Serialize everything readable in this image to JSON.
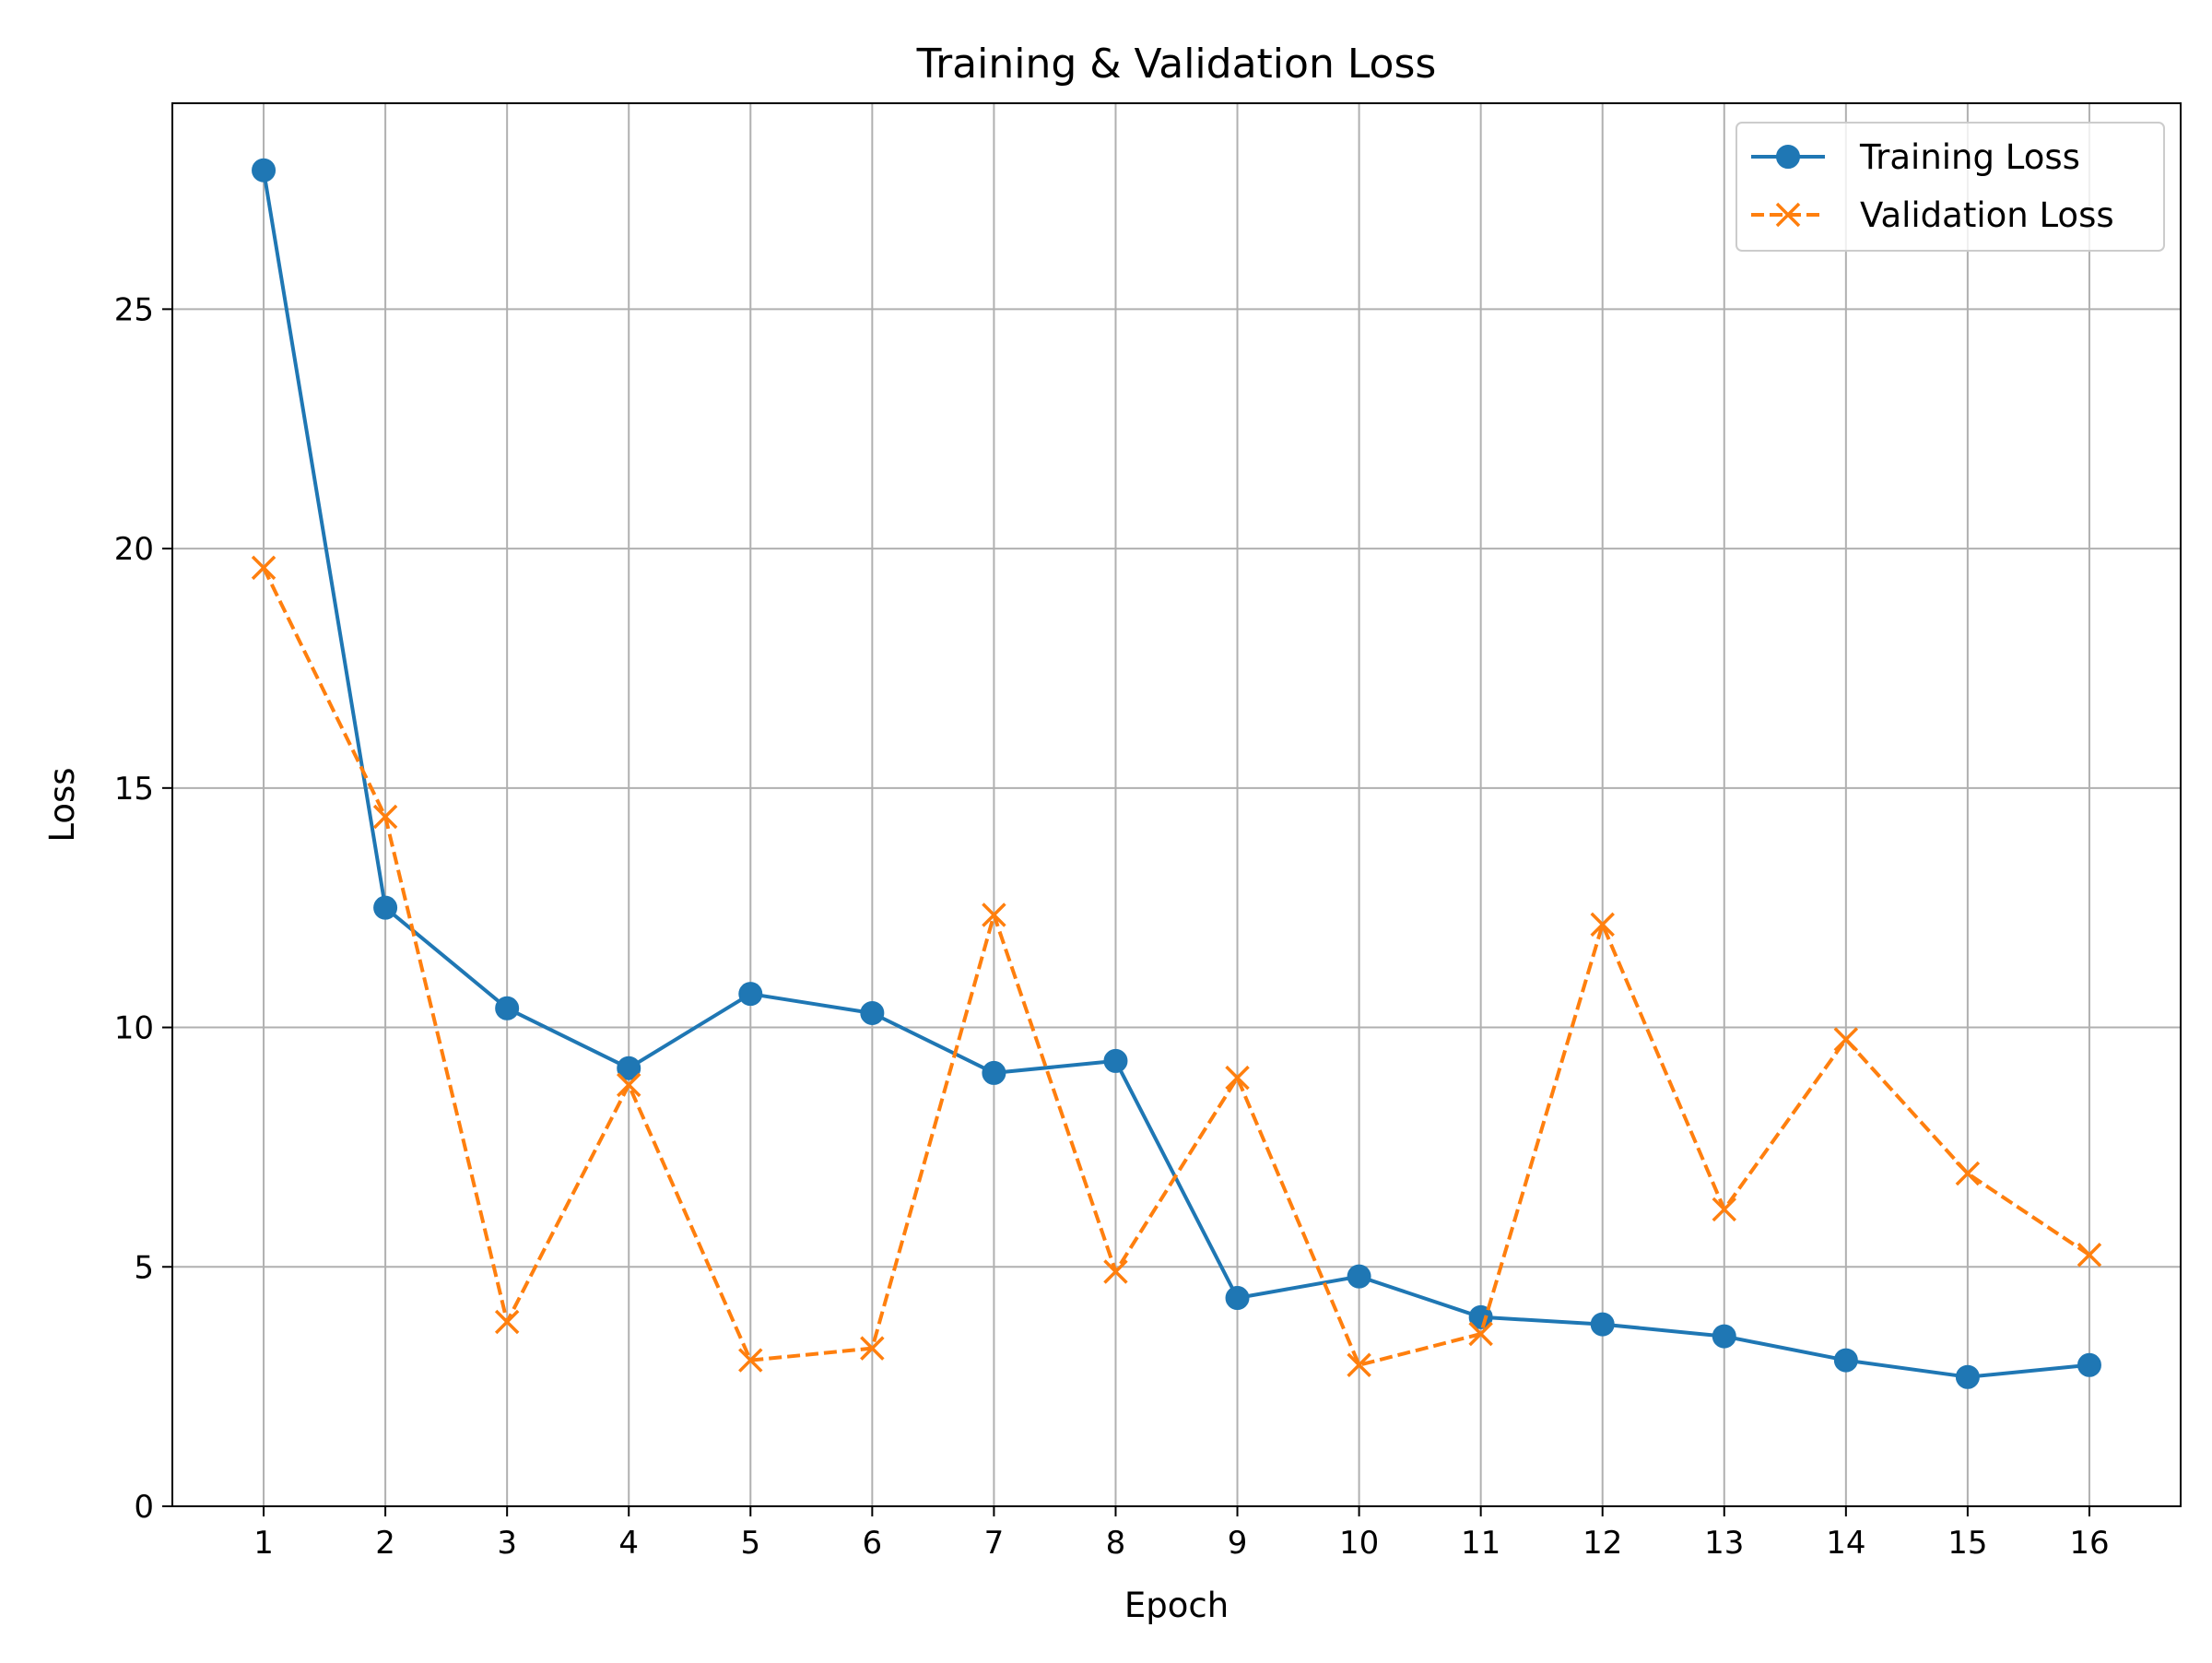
{
  "chart_data": {
    "type": "line",
    "title": "Training & Validation Loss",
    "xlabel": "Epoch",
    "ylabel": "Loss",
    "x": [
      1,
      2,
      3,
      4,
      5,
      6,
      7,
      8,
      9,
      10,
      11,
      12,
      13,
      14,
      15,
      16
    ],
    "xlim": [
      0.25,
      16.75
    ],
    "ylim": [
      0,
      29.3
    ],
    "yticks": [
      0,
      5,
      10,
      15,
      20,
      25
    ],
    "grid": true,
    "legend_position": "top-right",
    "series": [
      {
        "name": "Training Loss",
        "color": "#1f77b4",
        "line_style": "solid",
        "marker": "circle",
        "values": [
          27.9,
          12.5,
          10.4,
          9.15,
          10.7,
          10.3,
          9.05,
          9.3,
          4.35,
          4.8,
          3.95,
          3.8,
          3.55,
          3.05,
          2.7,
          2.95
        ]
      },
      {
        "name": "Validation Loss",
        "color": "#ff7f0e",
        "line_style": "dashed",
        "marker": "x",
        "values": [
          19.6,
          14.4,
          3.85,
          8.8,
          3.05,
          3.3,
          12.35,
          4.9,
          8.95,
          2.95,
          3.6,
          12.15,
          6.2,
          9.75,
          6.95,
          5.25
        ]
      }
    ]
  }
}
